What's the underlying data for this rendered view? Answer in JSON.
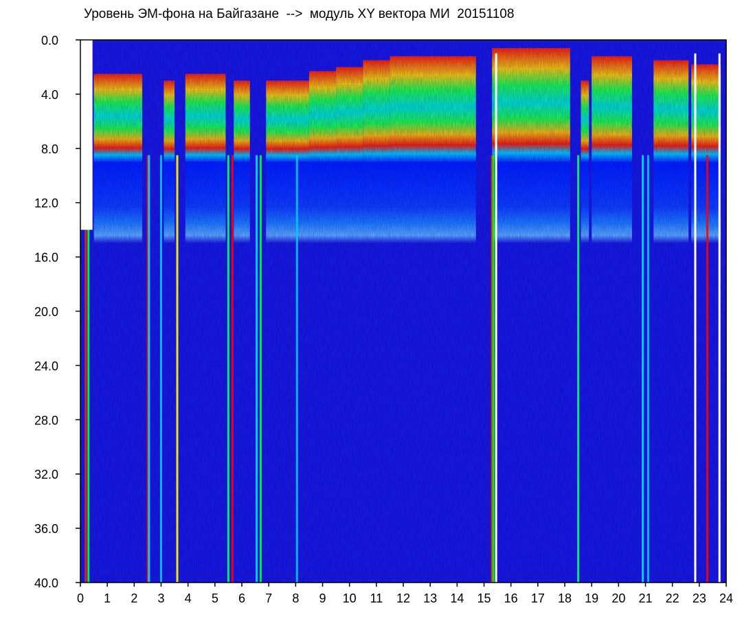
{
  "title": "Уровень ЭМ-фона на Байгазане  -->  модуль XY вектора МИ  20151108",
  "chart_data": {
    "type": "heatmap",
    "title": "Уровень ЭМ-фона на Байгазане  -->  модуль XY вектора МИ  20151108",
    "xlabel": "",
    "ylabel": "",
    "x_ticks": [
      "0",
      "1",
      "2",
      "3",
      "4",
      "5",
      "6",
      "7",
      "8",
      "9",
      "10",
      "11",
      "12",
      "13",
      "14",
      "15",
      "16",
      "17",
      "18",
      "19",
      "20",
      "21",
      "22",
      "23",
      "24"
    ],
    "y_ticks": [
      "0.0",
      "4.0",
      "8.0",
      "12.0",
      "16.0",
      "20.0",
      "24.0",
      "28.0",
      "32.0",
      "36.0",
      "40.0"
    ],
    "xlim": [
      0,
      24
    ],
    "ylim": [
      0,
      40
    ],
    "y_inverted": true,
    "grid": false,
    "colors": {
      "background_level": "#1a1adf",
      "low": "#0000ff",
      "mid_low": "#00c8ff",
      "mid": "#00ff40",
      "mid_high": "#ffff00",
      "high": "#ff0000",
      "gap": "#ffffff"
    },
    "activity_segments": [
      {
        "x0": 0.5,
        "x1": 2.3,
        "top": 2.5
      },
      {
        "x0": 3.1,
        "x1": 3.5,
        "top": 3.0
      },
      {
        "x0": 3.9,
        "x1": 5.4,
        "top": 2.5
      },
      {
        "x0": 5.7,
        "x1": 6.3,
        "top": 3.0
      },
      {
        "x0": 6.9,
        "x1": 8.5,
        "top": 3.0
      },
      {
        "x0": 8.5,
        "x1": 9.5,
        "top": 2.3
      },
      {
        "x0": 9.5,
        "x1": 10.5,
        "top": 2.0
      },
      {
        "x0": 10.5,
        "x1": 11.5,
        "top": 1.5
      },
      {
        "x0": 11.5,
        "x1": 14.7,
        "top": 1.2
      },
      {
        "x0": 15.3,
        "x1": 18.2,
        "top": 0.6
      },
      {
        "x0": 18.6,
        "x1": 18.9,
        "top": 3.0
      },
      {
        "x0": 19.0,
        "x1": 20.5,
        "top": 1.2
      },
      {
        "x0": 21.3,
        "x1": 22.6,
        "top": 1.5
      },
      {
        "x0": 22.7,
        "x1": 23.8,
        "top": 1.8
      }
    ],
    "vertical_streaks": [
      {
        "x": 0.2,
        "color": "#ff2000"
      },
      {
        "x": 0.3,
        "color": "#00ff40"
      },
      {
        "x": 2.5,
        "color": "#ff0000"
      },
      {
        "x": 2.55,
        "color": "#00e0ff"
      },
      {
        "x": 3.0,
        "color": "#00c8ff"
      },
      {
        "x": 3.6,
        "color": "#ffff00"
      },
      {
        "x": 5.5,
        "color": "#00ff60"
      },
      {
        "x": 5.65,
        "color": "#ff0000"
      },
      {
        "x": 6.55,
        "color": "#00e0ff"
      },
      {
        "x": 6.7,
        "color": "#00ff40"
      },
      {
        "x": 8.05,
        "color": "#00c8ff"
      },
      {
        "x": 15.3,
        "color": "#ff3000"
      },
      {
        "x": 15.35,
        "color": "#00ff00"
      },
      {
        "x": 18.5,
        "color": "#00ff60"
      },
      {
        "x": 20.9,
        "color": "#00e0ff"
      },
      {
        "x": 21.1,
        "color": "#00c8ff"
      },
      {
        "x": 23.3,
        "color": "#ff0000"
      }
    ],
    "white_gaps": [
      15.45,
      22.85,
      23.75
    ]
  }
}
